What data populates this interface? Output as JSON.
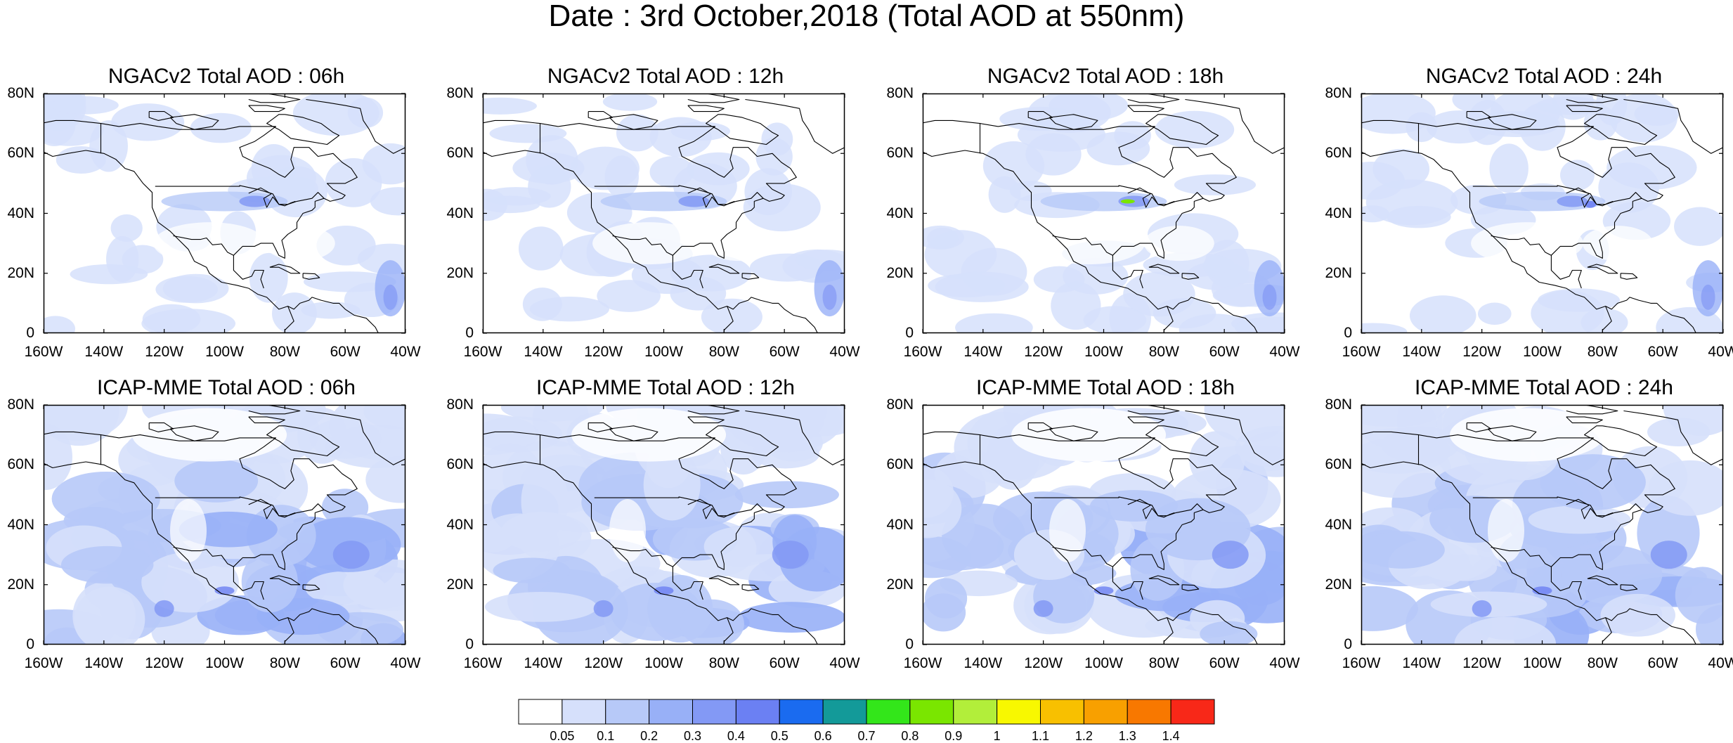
{
  "title": "Date : 3rd October,2018 (Total AOD at 550nm)",
  "panels": [
    {
      "title": "NGACv2 Total AOD : 06h",
      "model": "NGACv2",
      "hour": 6
    },
    {
      "title": "NGACv2 Total AOD : 12h",
      "model": "NGACv2",
      "hour": 12
    },
    {
      "title": "NGACv2 Total AOD : 18h",
      "model": "NGACv2",
      "hour": 18
    },
    {
      "title": "NGACv2 Total AOD : 24h",
      "model": "NGACv2",
      "hour": 24
    },
    {
      "title": "ICAP-MME Total AOD : 06h",
      "model": "ICAP-MME",
      "hour": 6
    },
    {
      "title": "ICAP-MME Total AOD : 12h",
      "model": "ICAP-MME",
      "hour": 12
    },
    {
      "title": "ICAP-MME Total AOD : 18h",
      "model": "ICAP-MME",
      "hour": 18
    },
    {
      "title": "ICAP-MME Total AOD : 24h",
      "model": "ICAP-MME",
      "hour": 24
    }
  ],
  "axes": {
    "lon_ticks": [
      "160W",
      "140W",
      "120W",
      "100W",
      "80W",
      "60W",
      "40W"
    ],
    "lat_ticks": [
      "80N",
      "60N",
      "40N",
      "20N",
      "0"
    ],
    "lon_range": [
      -160,
      -40
    ],
    "lat_range": [
      0,
      80
    ]
  },
  "colorbar": {
    "labels": [
      "0.05",
      "0.1",
      "0.2",
      "0.3",
      "0.4",
      "0.5",
      "0.6",
      "0.7",
      "0.8",
      "0.9",
      "1",
      "1.1",
      "1.2",
      "1.3",
      "1.4"
    ],
    "colors": [
      "#ffffff",
      "#d6e0fb",
      "#b7c9f8",
      "#98b0f7",
      "#8399f5",
      "#6b80f3",
      "#1a6bf0",
      "#139a99",
      "#33e61a",
      "#7ae600",
      "#b2ee3a",
      "#f8f800",
      "#f8c000",
      "#f8a000",
      "#f87800",
      "#f82818"
    ]
  }
}
